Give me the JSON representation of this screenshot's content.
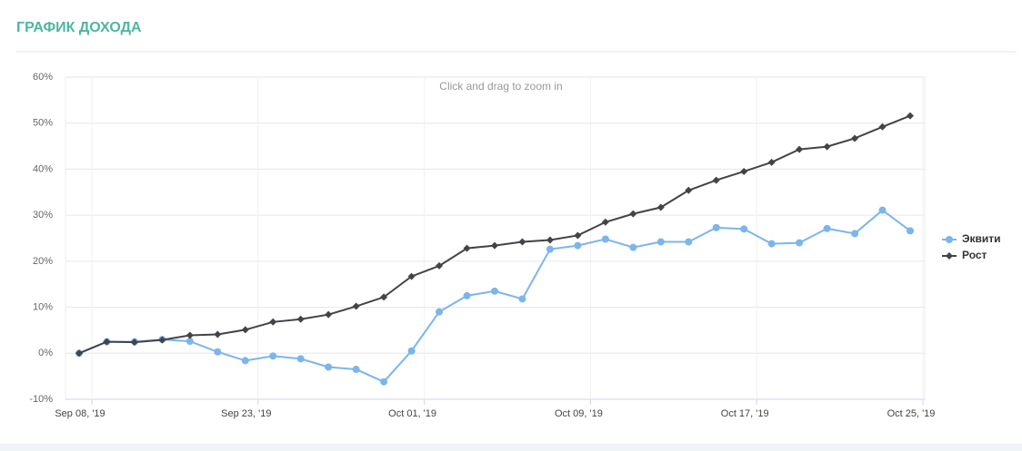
{
  "header": {
    "title": "ГРАФИК ДОХОДА"
  },
  "chart_data": {
    "type": "line",
    "annotation": "Click and drag to zoom in",
    "categories": [
      "Sep 08, '19",
      null,
      null,
      null,
      null,
      null,
      "Sep 23, '19",
      null,
      null,
      null,
      null,
      null,
      "Oct 01, '19",
      null,
      null,
      null,
      null,
      null,
      "Oct 09, '19",
      null,
      null,
      null,
      null,
      null,
      "Oct 17, '19",
      null,
      null,
      null,
      null,
      null,
      "Oct 25, '19"
    ],
    "series": [
      {
        "name": "Эквити",
        "color": "#7cb5ec",
        "marker": "circle",
        "values": [
          0,
          2.5,
          2.5,
          3.0,
          2.6,
          0.3,
          -1.6,
          -0.6,
          -1.2,
          -3.0,
          -3.5,
          -6.2,
          0.5,
          9.0,
          12.5,
          13.5,
          11.8,
          22.6,
          23.4,
          24.8,
          23.0,
          24.2,
          24.2,
          27.3,
          27.0,
          23.8,
          24.0,
          27.1,
          26.0,
          31.1,
          26.6
        ]
      },
      {
        "name": "Рост",
        "color": "#434348",
        "marker": "diamond",
        "values": [
          0,
          2.5,
          2.4,
          2.9,
          3.9,
          4.1,
          5.1,
          6.8,
          7.4,
          8.4,
          10.2,
          12.2,
          16.7,
          19.0,
          22.8,
          23.4,
          24.2,
          24.6,
          25.6,
          28.5,
          30.3,
          31.7,
          35.4,
          37.6,
          39.5,
          41.5,
          44.3,
          44.9,
          46.7,
          49.2,
          51.6
        ]
      }
    ],
    "ylim": [
      -10,
      60
    ],
    "yticks": [
      {
        "value": -10,
        "label": "-10%"
      },
      {
        "value": 0,
        "label": "0%"
      },
      {
        "value": 10,
        "label": "10%"
      },
      {
        "value": 20,
        "label": "20%"
      },
      {
        "value": 30,
        "label": "30%"
      },
      {
        "value": 40,
        "label": "40%"
      },
      {
        "value": 50,
        "label": "50%"
      },
      {
        "value": 60,
        "label": "60%"
      }
    ],
    "grid": true,
    "legend": "right"
  }
}
